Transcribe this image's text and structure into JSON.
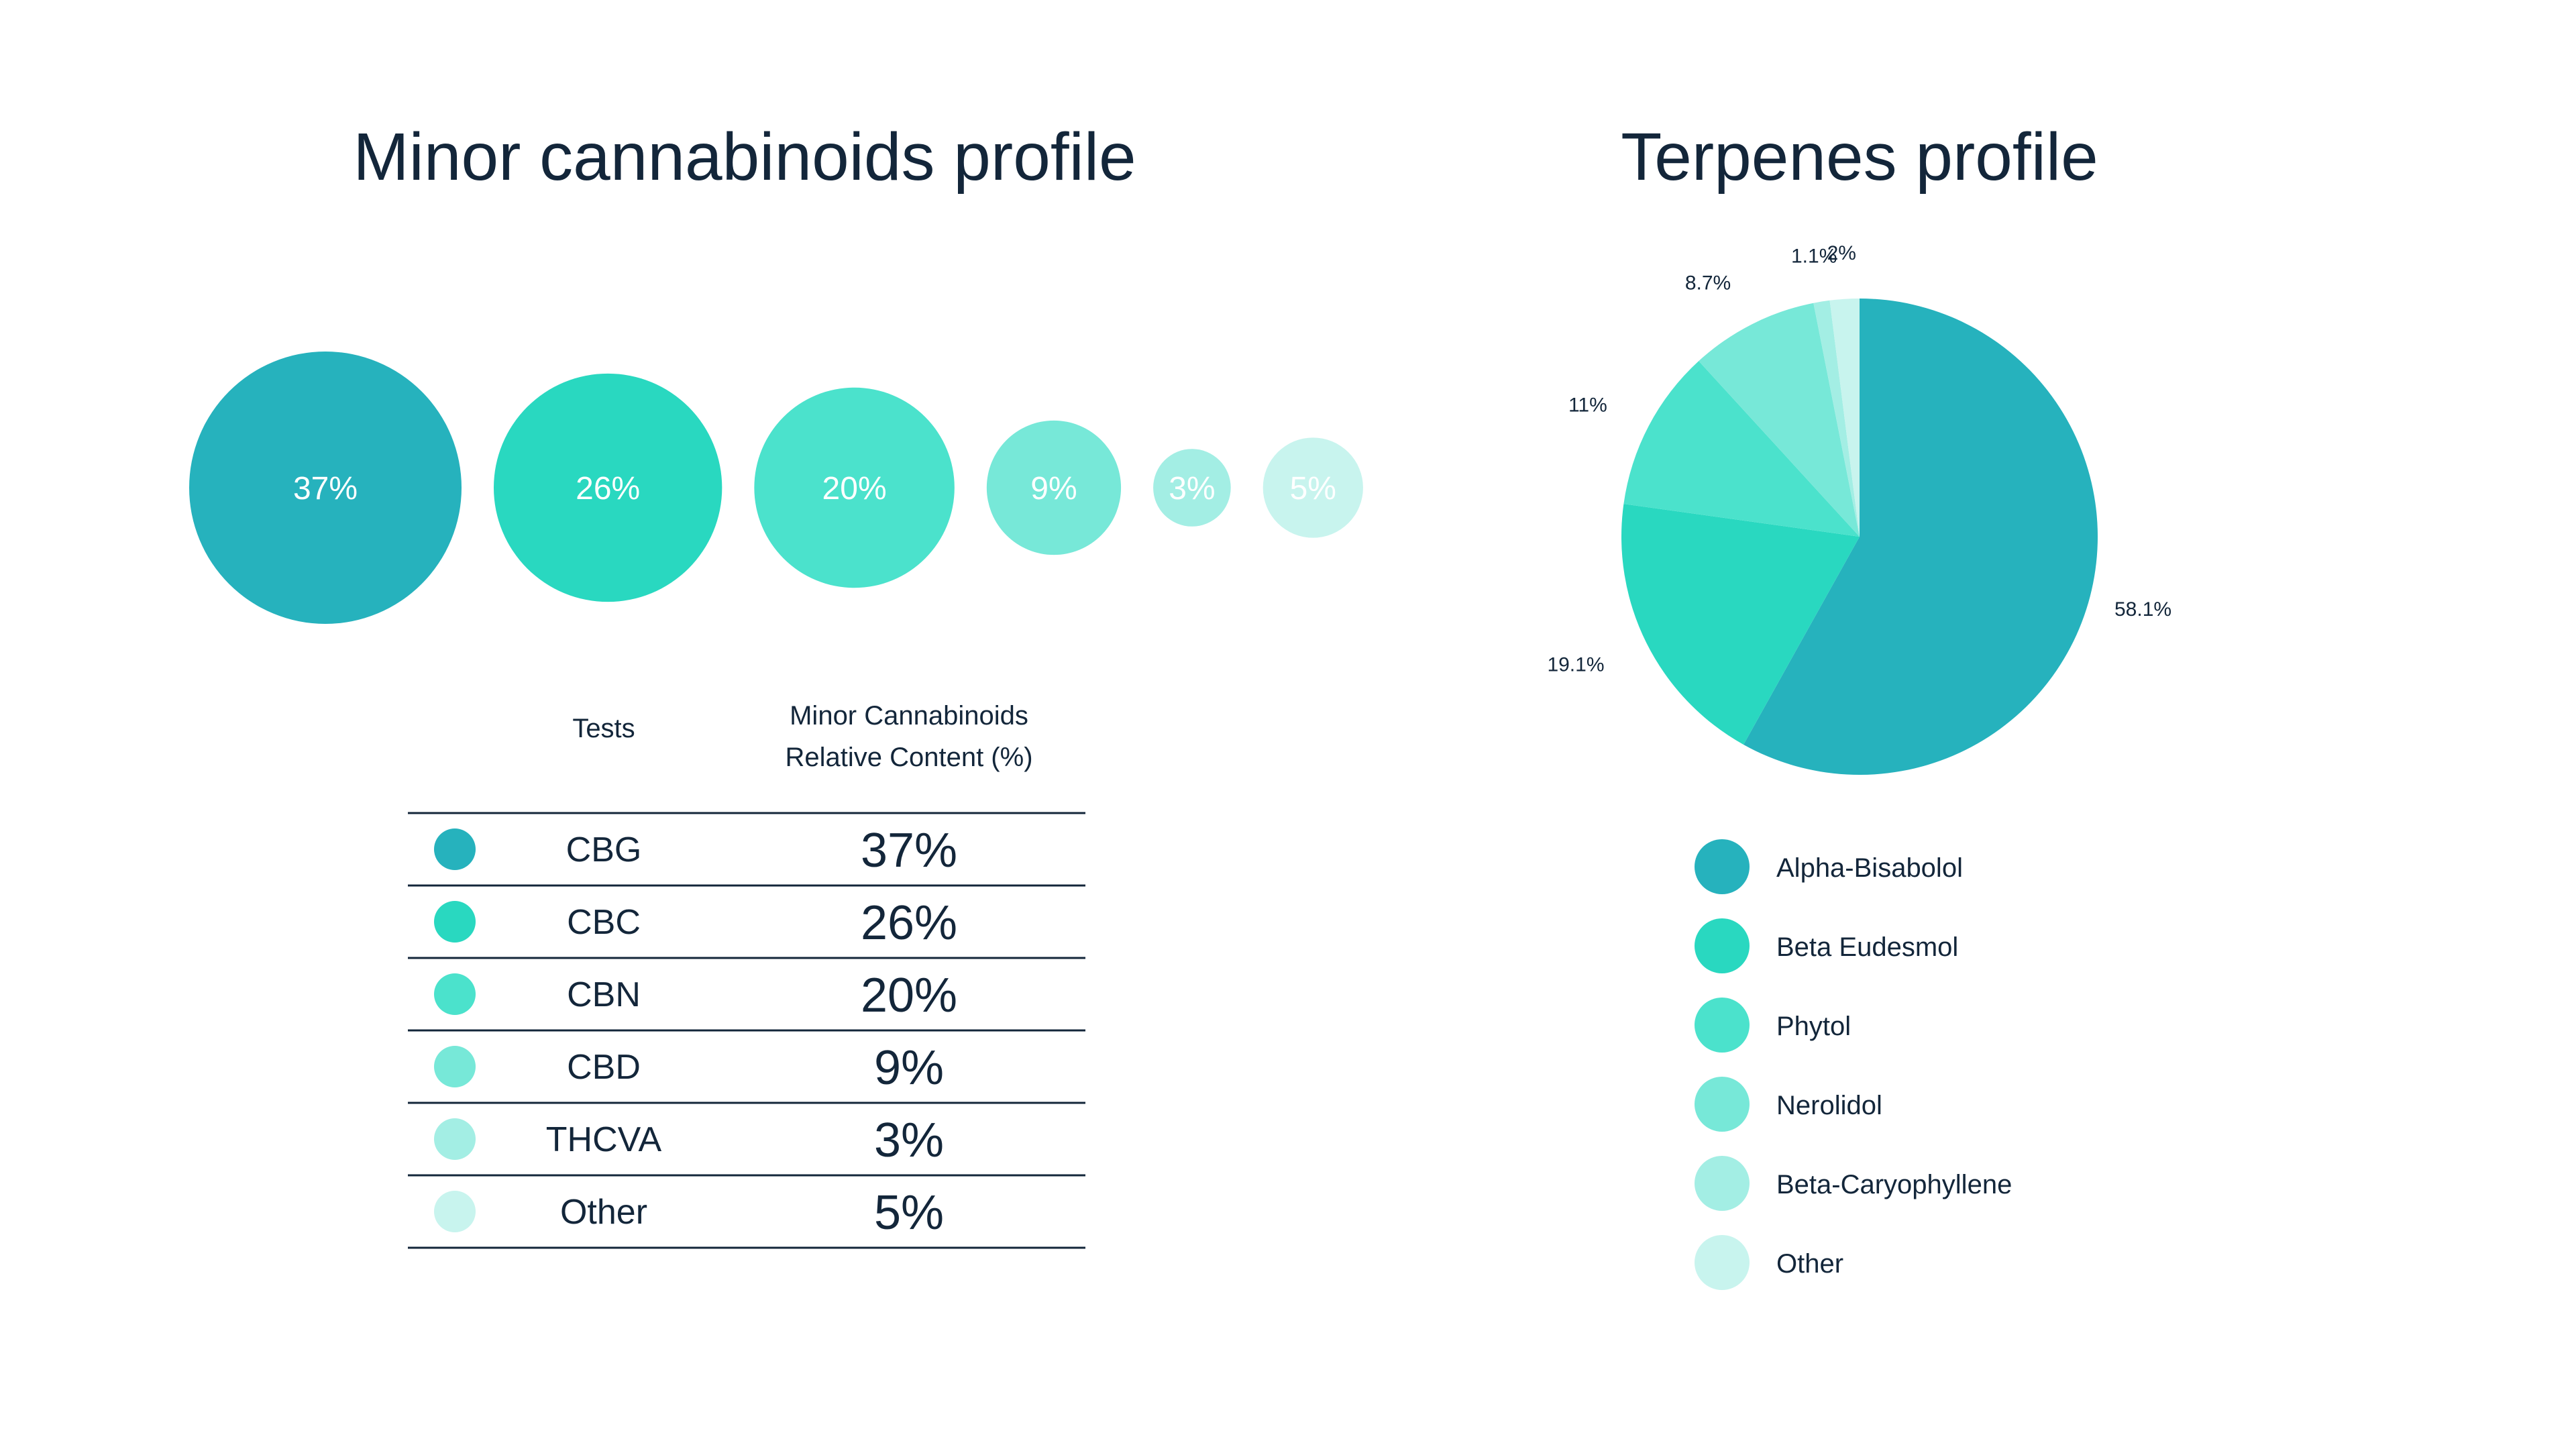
{
  "chart_data": [
    {
      "type": "table",
      "title": "Minor cannabinoids profile",
      "columns": [
        "Tests",
        "Minor Cannabinoids Relative Content (%)"
      ],
      "header_value_lines": [
        "Minor Cannabinoids",
        "Relative Content (%)"
      ],
      "categories": [
        "CBG",
        "CBC",
        "CBN",
        "CBD",
        "THCVA",
        "Other"
      ],
      "values": [
        37,
        26,
        20,
        9,
        3,
        5
      ],
      "value_labels": [
        "37%",
        "26%",
        "20%",
        "9%",
        "3%",
        "5%"
      ],
      "colors": [
        "#26b2bd",
        "#29d8c0",
        "#4be2cc",
        "#77e8d8",
        "#a3eee4",
        "#c8f4ee"
      ]
    },
    {
      "type": "pie",
      "title": "Terpenes profile",
      "categories": [
        "Alpha-Bisabolol",
        "Beta Eudesmol",
        "Phytol",
        "Nerolidol",
        "Beta-Caryophyllene",
        "Other"
      ],
      "values": [
        58.1,
        19.1,
        11,
        8.7,
        1.1,
        2
      ],
      "value_labels": [
        "58.1%",
        "19.1%",
        "11%",
        "8.7%",
        "1.1%",
        "2%"
      ],
      "colors": [
        "#26b2bd",
        "#29d8c0",
        "#4be2cc",
        "#77e8d8",
        "#a3eee4",
        "#c8f4ee"
      ]
    }
  ]
}
